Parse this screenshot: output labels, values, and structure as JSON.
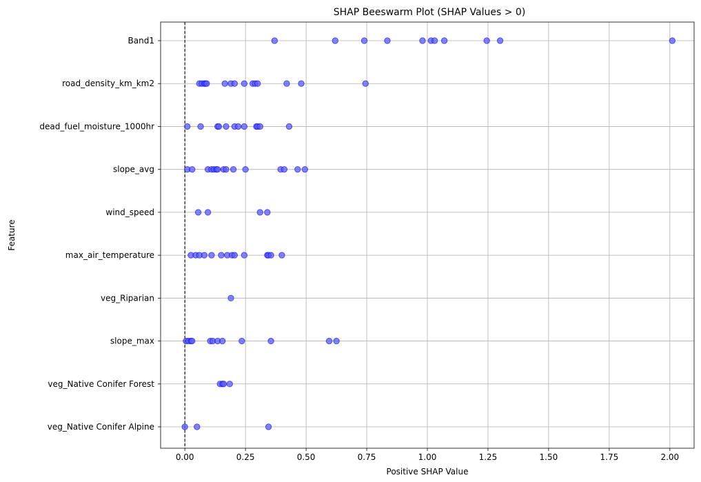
{
  "chart_data": {
    "type": "scatter",
    "title": "SHAP Beeswarm Plot (SHAP Values > 0)",
    "xlabel": "Positive SHAP Value",
    "ylabel": "Feature",
    "xlim": [
      -0.1,
      2.1
    ],
    "xticks": [
      0.0,
      0.25,
      0.5,
      0.75,
      1.0,
      1.25,
      1.5,
      1.75,
      2.0
    ],
    "xtick_labels": [
      "0.00",
      "0.25",
      "0.50",
      "0.75",
      "1.00",
      "1.25",
      "1.50",
      "1.75",
      "2.00"
    ],
    "grid": true,
    "reference_line": {
      "x": 0,
      "style": "dashed",
      "color": "#000000"
    },
    "marker_color": "#5b5bef",
    "marker_edge_color": "#0000ff",
    "features": [
      "Band1",
      "road_density_km_km2",
      "dead_fuel_moisture_1000hr",
      "slope_avg",
      "wind_speed",
      "max_air_temperature",
      "veg_Riparian ",
      "slope_max",
      "veg_Native Conifer Forest ",
      "veg_Native Conifer Alpine "
    ],
    "series": [
      {
        "feature": "Band1",
        "values": [
          0.37,
          0.62,
          0.74,
          0.835,
          0.98,
          1.015,
          1.03,
          1.07,
          1.245,
          1.3,
          2.01
        ]
      },
      {
        "feature": "road_density_km_km2",
        "values": [
          0.06,
          0.07,
          0.08,
          0.085,
          0.09,
          0.165,
          0.19,
          0.205,
          0.245,
          0.28,
          0.29,
          0.3,
          0.42,
          0.48,
          0.745
        ]
      },
      {
        "feature": "dead_fuel_moisture_1000hr",
        "values": [
          0.01,
          0.065,
          0.135,
          0.14,
          0.17,
          0.205,
          0.22,
          0.245,
          0.295,
          0.3,
          0.31,
          0.43
        ]
      },
      {
        "feature": "slope_avg",
        "values": [
          0.01,
          0.03,
          0.095,
          0.11,
          0.12,
          0.13,
          0.135,
          0.16,
          0.17,
          0.2,
          0.25,
          0.395,
          0.41,
          0.465,
          0.495
        ]
      },
      {
        "feature": "wind_speed",
        "values": [
          0.055,
          0.095,
          0.31,
          0.34
        ]
      },
      {
        "feature": "max_air_temperature",
        "values": [
          0.025,
          0.045,
          0.06,
          0.08,
          0.11,
          0.15,
          0.175,
          0.195,
          0.205,
          0.245,
          0.34,
          0.345,
          0.355,
          0.4
        ]
      },
      {
        "feature": "veg_Riparian ",
        "values": [
          0.19
        ]
      },
      {
        "feature": "slope_max",
        "values": [
          0.005,
          0.015,
          0.025,
          0.03,
          0.105,
          0.115,
          0.135,
          0.155,
          0.235,
          0.355,
          0.595,
          0.625
        ]
      },
      {
        "feature": "veg_Native Conifer Forest ",
        "values": [
          0.145,
          0.155,
          0.16,
          0.185
        ]
      },
      {
        "feature": "veg_Native Conifer Alpine ",
        "values": [
          0.0,
          0.05,
          0.345
        ]
      }
    ]
  }
}
